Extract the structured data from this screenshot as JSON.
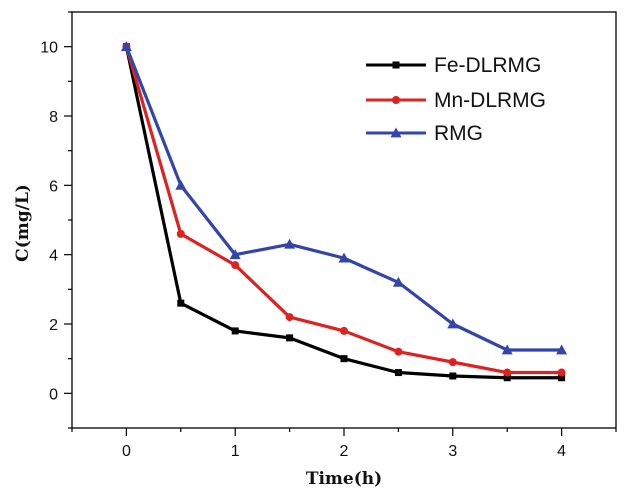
{
  "chart_data": {
    "type": "line",
    "title": "",
    "xlabel": "Time(h)",
    "ylabel": "C(mg/L)",
    "xlim": [
      -0.5,
      4.5
    ],
    "ylim": [
      -1,
      11
    ],
    "xticks": [
      0,
      1,
      2,
      3,
      4
    ],
    "yticks": [
      0,
      2,
      4,
      6,
      8,
      10
    ],
    "grid": false,
    "legend_position": "top-right",
    "series": [
      {
        "name": "Fe-DLRMG",
        "color": "#000000",
        "marker": "square",
        "x": [
          0,
          0.5,
          1,
          1.5,
          2,
          2.5,
          3,
          3.5,
          4
        ],
        "y": [
          10.0,
          2.6,
          1.8,
          1.6,
          1.0,
          0.6,
          0.5,
          0.45,
          0.45
        ]
      },
      {
        "name": "Mn-DLRMG",
        "color": "#dd2222",
        "marker": "circle",
        "x": [
          0,
          0.5,
          1,
          1.5,
          2,
          2.5,
          3,
          3.5,
          4
        ],
        "y": [
          10.0,
          4.6,
          3.7,
          2.2,
          1.8,
          1.2,
          0.9,
          0.6,
          0.6
        ]
      },
      {
        "name": "RMG",
        "color": "#3344aa",
        "marker": "triangle",
        "x": [
          0,
          0.5,
          1,
          1.5,
          2,
          2.5,
          3,
          3.5,
          4
        ],
        "y": [
          10.0,
          6.0,
          4.0,
          4.3,
          3.9,
          3.2,
          2.0,
          1.25,
          1.25
        ]
      }
    ]
  }
}
